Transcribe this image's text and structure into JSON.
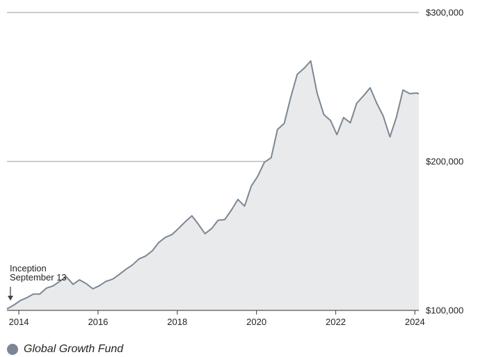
{
  "chart_data": {
    "type": "area",
    "title": "",
    "xlabel": "",
    "ylabel": "",
    "x_ticks": [
      "2014",
      "2016",
      "2018",
      "2020",
      "2022",
      "2024"
    ],
    "y_ticks": [
      100000,
      200000,
      300000
    ],
    "y_tick_labels": [
      "$100,000",
      "$200,000",
      "$300,000"
    ],
    "ylim": [
      100000,
      300000
    ],
    "xlim": [
      2013.7,
      2024.1
    ],
    "grid": "horizontal",
    "legend_position": "bottom-left",
    "annotation": {
      "line1": "Inception",
      "line2": "September 13",
      "x": 2013.7
    },
    "series": [
      {
        "name": "Global Growth Fund",
        "color": "#7b8794",
        "fill": "#e8eaec",
        "x": [
          2013.7,
          2013.87,
          2014.03,
          2014.2,
          2014.37,
          2014.53,
          2014.7,
          2014.87,
          2015.03,
          2015.2,
          2015.37,
          2015.53,
          2015.7,
          2015.87,
          2016.03,
          2016.2,
          2016.37,
          2016.53,
          2016.7,
          2016.87,
          2017.03,
          2017.2,
          2017.37,
          2017.53,
          2017.7,
          2017.87,
          2018.03,
          2018.2,
          2018.37,
          2018.53,
          2018.7,
          2018.87,
          2019.03,
          2019.2,
          2019.37,
          2019.53,
          2019.7,
          2019.87,
          2020.03,
          2020.2,
          2020.37,
          2020.53,
          2020.7,
          2020.87,
          2021.03,
          2021.2,
          2021.37,
          2021.53,
          2021.7,
          2021.87,
          2022.03,
          2022.2,
          2022.37,
          2022.53,
          2022.7,
          2022.87,
          2023.03,
          2023.2,
          2023.37,
          2023.53,
          2023.7,
          2023.87,
          2024.03,
          2024.1
        ],
        "values": [
          101000,
          103500,
          106500,
          108500,
          111000,
          111000,
          115000,
          116500,
          119500,
          122500,
          117500,
          120500,
          118000,
          114500,
          116500,
          119500,
          121000,
          124000,
          127500,
          130500,
          134500,
          136500,
          140000,
          145500,
          149000,
          151000,
          155000,
          159500,
          163500,
          158000,
          151500,
          155000,
          160500,
          161000,
          167500,
          174500,
          170000,
          183500,
          190000,
          199500,
          202500,
          221500,
          225500,
          243500,
          258500,
          262500,
          267500,
          246000,
          231500,
          227500,
          218000,
          229500,
          226000,
          239000,
          244000,
          249500,
          239500,
          230500,
          216500,
          229500,
          248000,
          245500,
          246000,
          245500
        ]
      }
    ]
  }
}
